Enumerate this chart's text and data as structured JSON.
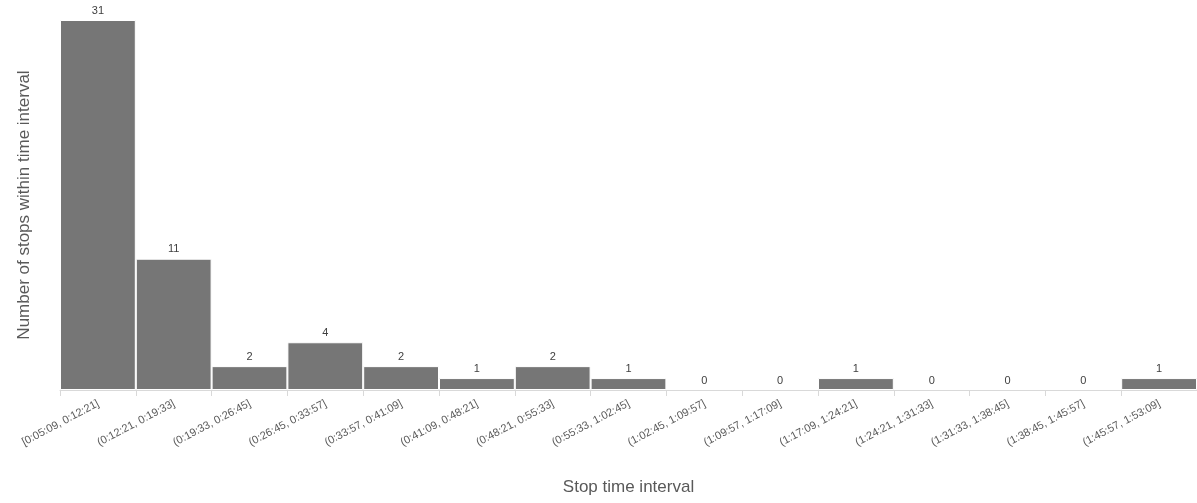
{
  "chart_data": {
    "type": "bar",
    "xlabel": "Stop time interval",
    "ylabel": "Number of stops within time interval",
    "categories": [
      "[0:05:09, 0:12:21]",
      "(0:12:21, 0:19:33]",
      "(0:19:33, 0:26:45]",
      "(0:26:45, 0:33:57]",
      "(0:33:57, 0:41:09]",
      "(0:41:09, 0:48:21]",
      "(0:48:21, 0:55:33]",
      "(0:55:33, 1:02:45]",
      "(1:02:45, 1:09:57]",
      "(1:09:57, 1:17:09]",
      "(1:17:09, 1:24:21]",
      "(1:24:21, 1:31:33]",
      "(1:31:33, 1:38:45]",
      "(1:38:45, 1:45:57]",
      "(1:45:57, 1:53:09]"
    ],
    "values": [
      31,
      11,
      2,
      4,
      2,
      1,
      2,
      1,
      0,
      0,
      1,
      0,
      0,
      0,
      1
    ],
    "color": "#767676",
    "data_labels": true,
    "tick_labels": "x",
    "grid": false
  }
}
